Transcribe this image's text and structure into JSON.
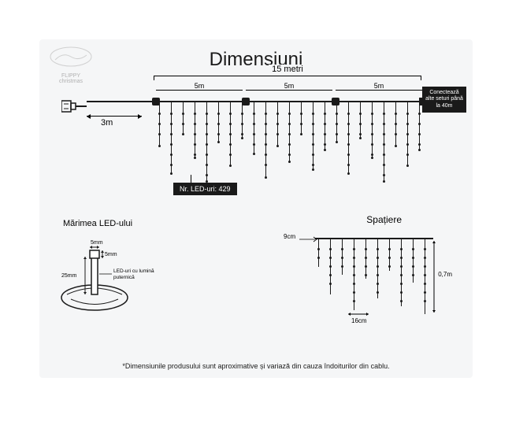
{
  "title": "Dimensiuni",
  "logo": {
    "line1": "FLIPPY",
    "line2": "christmas"
  },
  "totalWidth": "15 metri",
  "sections": [
    "5m",
    "5m",
    "5m"
  ],
  "leadCable": "3m",
  "connectBox": "Conectează alte seturi până la 40m",
  "ledCount": "Nr. LED-uri: 429",
  "ledSize": {
    "title": "Mărimea LED-ului",
    "top": "5mm",
    "side": "5mm",
    "height": "25mm",
    "note": "LED-uri cu lumină puternică"
  },
  "spacing": {
    "title": "Spațiere",
    "gap": "9cm",
    "strandGap": "16cm",
    "drop": "0,7m"
  },
  "disclaimer": "*Dimensiunile produsului sunt aproximative și variază din cauza îndoiturilor din cablu.",
  "colors": {
    "bg": "#f5f6f7",
    "line": "#1a1a1a",
    "box": "#1a1a1a"
  },
  "strandHeights": [
    55,
    90,
    40,
    70,
    100,
    50,
    80,
    45,
    65,
    95,
    55,
    75,
    40,
    85,
    60,
    50,
    90,
    45,
    70,
    100,
    55,
    80,
    60
  ],
  "spacingStrands": [
    35,
    70,
    45,
    90,
    50,
    75,
    40,
    85,
    55,
    95
  ]
}
